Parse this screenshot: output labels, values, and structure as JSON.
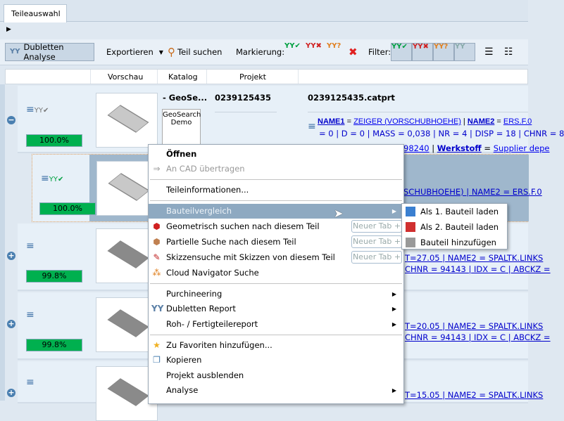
{
  "tabs": [
    {
      "label": "Teileauswahl"
    }
  ],
  "toolbar": {
    "dubletten": "Dubletten Analyse",
    "export": "Exportieren",
    "search": "Teil suchen",
    "mark_label": "Markierung:",
    "filter_label": "Filter:"
  },
  "columns": [
    "Vorschau",
    "Katalog",
    "Projekt"
  ],
  "rows": [
    {
      "match": "100.0%",
      "catalog": "- GeoSe...",
      "catalog_logo": "GeoSearch Demo",
      "project": "0239125435",
      "file": "0239125435.catprt",
      "line1": [
        {
          "k": "NAME1",
          "v": "ZEIGER (VORSCHUBHOEHE)"
        },
        {
          "k": "NAME2",
          "v": "ERS.F.0"
        }
      ],
      "line2": "= 0 | D = 0 | MASS = 0,038 | NR = 4 | DISP = 18 | CHNR = 8",
      "line3": [
        {
          "v": "98240"
        },
        {
          "k": "Werkstoff",
          "v": "Supplier depe"
        }
      ]
    },
    {
      "match": "100.0%",
      "line1": "SCHUBHOEHE) | NAME2 = ERS.F.0"
    },
    {
      "match": "99.8%",
      "line1": "T=27.05 | NAME2 = SPALTK.LINKS",
      "line2": "CHNR = 94143 | IDX = C | ABCKZ ="
    },
    {
      "match": "99.8%",
      "line1": "T=20.05 | NAME2 = SPALTK.LINKS",
      "line2": "CHNR = 94143 | IDX = C | ABCKZ ="
    },
    {
      "match": "",
      "line1": "T=15.05 | NAME2 = SPALTK.LINKS"
    }
  ],
  "context_menu": {
    "items": [
      {
        "label": "Öffnen",
        "bold": true
      },
      {
        "label": "An CAD übertragen",
        "disabled": true
      },
      {
        "label": "Teileinformationen..."
      },
      {
        "label": "Bauteilvergleich",
        "submenu": true,
        "highlighted": true
      },
      {
        "label": "Geometrisch suchen nach diesem Teil",
        "newtab": "Neuer Tab +"
      },
      {
        "label": "Partielle Suche nach diesem Teil",
        "newtab": "Neuer Tab +"
      },
      {
        "label": "Skizzensuche mit Skizzen von diesem Teil",
        "newtab": "Neuer Tab +"
      },
      {
        "label": "Cloud Navigator Suche"
      },
      {
        "label": "Purchineering",
        "submenu": true
      },
      {
        "label": "Dubletten Report",
        "submenu": true
      },
      {
        "label": "Roh- / Fertigteilereport",
        "submenu": true
      },
      {
        "label": "Zu Favoriten hinzufügen..."
      },
      {
        "label": "Kopieren"
      },
      {
        "label": "Projekt ausblenden"
      },
      {
        "label": "Analyse",
        "submenu": true
      }
    ],
    "submenu": [
      "Als 1. Bauteil laden",
      "Als 2. Bauteil laden",
      "Bauteil hinzufügen"
    ]
  },
  "colors": {
    "match_green": "#00b04f",
    "highlight": "#8ea9c1",
    "row_bg": "#e7f0f8",
    "selected_bg": "#9fb7cc"
  }
}
